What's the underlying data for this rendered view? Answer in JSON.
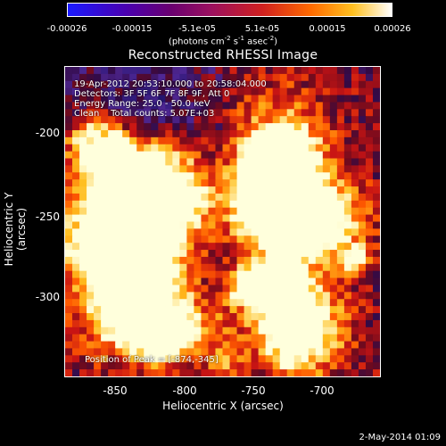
{
  "colorbar": {
    "ticks": [
      "-0.00026",
      "-0.00015",
      "-5.1e-05",
      "5.1e-05",
      "0.00015",
      "0.00026"
    ],
    "units_main": "(photons cm",
    "units_e1": "-2",
    "units_mid1": " s",
    "units_e2": "-1",
    "units_mid2": " asec",
    "units_e3": "-2",
    "units_end": ")"
  },
  "title": "Reconstructed RHESSI Image",
  "annotations": {
    "line1": "19-Apr-2012 20:53:10.000 to 20:58:04.000",
    "line2": "Detectors: 3F 5F 6F 7F 8F 9F, Att 0",
    "line3": "Energy Range: 25.0 - 50.0 keV",
    "line4_clean": "Clean",
    "line4_counts": "Total counts: 5.07E+03",
    "peak": "Position of Peak = [-874,-345]"
  },
  "axes": {
    "xlabel": "Heliocentric X (arcsec)",
    "ylabel": "Heliocentric Y (arcsec)",
    "xticks": [
      "-850",
      "-800",
      "-750",
      "-700"
    ],
    "yticks": [
      "-200",
      "-250",
      "-300"
    ]
  },
  "timestamp": "2-May-2014 01:09"
}
